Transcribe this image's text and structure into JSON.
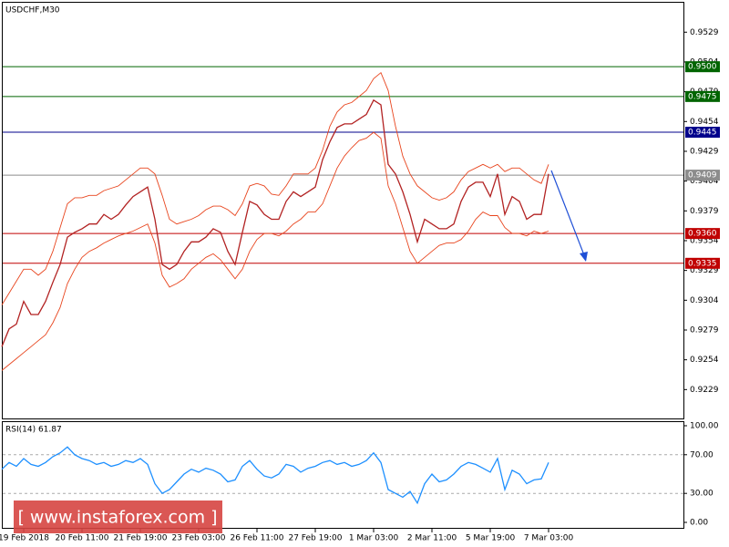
{
  "chart_data": [
    {
      "type": "line",
      "title": "USDCHF,M30",
      "categories": [
        null,
        null,
        null,
        "19 Feb 2018",
        null,
        null,
        null,
        null,
        null,
        null,
        null,
        "20 Feb 11:00",
        null,
        null,
        null,
        null,
        null,
        null,
        null,
        "21 Feb 19:00",
        null,
        null,
        null,
        null,
        null,
        null,
        null,
        "23 Feb 03:00",
        null,
        null,
        null,
        null,
        null,
        null,
        null,
        "26 Feb 11:00",
        null,
        null,
        null,
        null,
        null,
        null,
        null,
        "27 Feb 19:00",
        null,
        null,
        null,
        null,
        null,
        null,
        null,
        "1 Mar 03:00",
        null,
        null,
        null,
        null,
        null,
        null,
        null,
        "2 Mar 11:00",
        null,
        null,
        null,
        null,
        null,
        null,
        null,
        "5 Mar 19:00",
        null,
        null,
        null,
        null,
        null,
        null,
        null,
        "7 Mar 03:00"
      ],
      "series": [
        {
          "name": "Close",
          "color": "#b22222",
          "values": [
            0.9265,
            0.928,
            0.9284,
            0.9303,
            0.9292,
            0.9292,
            0.9303,
            0.9319,
            0.9334,
            0.9357,
            0.9361,
            0.9364,
            0.9368,
            0.9368,
            0.9376,
            0.9372,
            0.9376,
            0.9384,
            0.9391,
            0.9395,
            0.9399,
            0.9372,
            0.9334,
            0.933,
            0.9334,
            0.9345,
            0.9353,
            0.9353,
            0.9357,
            0.9364,
            0.9361,
            0.9345,
            0.9334,
            0.9361,
            0.9387,
            0.9384,
            0.9376,
            0.9372,
            0.9372,
            0.9387,
            0.9395,
            0.9391,
            0.9395,
            0.9399,
            0.9422,
            0.9437,
            0.9449,
            0.9452,
            0.9452,
            0.9456,
            0.946,
            0.9472,
            0.9468,
            0.9418,
            0.941,
            0.9395,
            0.9376,
            0.9353,
            0.9372,
            0.9368,
            0.9364,
            0.9364,
            0.9368,
            0.9387,
            0.9399,
            0.9403,
            0.9403,
            0.9391,
            0.941,
            0.9376,
            0.9391,
            0.9387,
            0.9372,
            0.9376,
            0.9376,
            0.941
          ]
        },
        {
          "name": "Upper",
          "color": "#e8451e",
          "values": [
            0.93,
            0.931,
            0.932,
            0.933,
            0.933,
            0.9325,
            0.933,
            0.9345,
            0.9365,
            0.9385,
            0.939,
            0.939,
            0.9392,
            0.9392,
            0.9396,
            0.9398,
            0.94,
            0.9405,
            0.941,
            0.9415,
            0.9415,
            0.941,
            0.9392,
            0.9372,
            0.9368,
            0.937,
            0.9372,
            0.9375,
            0.938,
            0.9383,
            0.9383,
            0.938,
            0.9375,
            0.9385,
            0.94,
            0.9402,
            0.94,
            0.9393,
            0.9392,
            0.94,
            0.941,
            0.941,
            0.941,
            0.9415,
            0.943,
            0.945,
            0.9462,
            0.9468,
            0.947,
            0.9475,
            0.948,
            0.949,
            0.9495,
            0.948,
            0.945,
            0.9425,
            0.941,
            0.94,
            0.9395,
            0.939,
            0.9388,
            0.939,
            0.9395,
            0.9405,
            0.9412,
            0.9415,
            0.9418,
            0.9415,
            0.9418,
            0.9412,
            0.9415,
            0.9415,
            0.941,
            0.9405,
            0.9402,
            0.9418
          ]
        },
        {
          "name": "Lower",
          "color": "#e8451e",
          "values": [
            0.9245,
            0.925,
            0.9255,
            0.926,
            0.9265,
            0.927,
            0.9275,
            0.9285,
            0.9298,
            0.9318,
            0.933,
            0.934,
            0.9345,
            0.9348,
            0.9352,
            0.9355,
            0.9358,
            0.936,
            0.9362,
            0.9365,
            0.9368,
            0.9352,
            0.9325,
            0.9315,
            0.9318,
            0.9322,
            0.933,
            0.9335,
            0.934,
            0.9343,
            0.9338,
            0.933,
            0.9322,
            0.933,
            0.9345,
            0.9355,
            0.936,
            0.936,
            0.9358,
            0.9362,
            0.9368,
            0.9372,
            0.9378,
            0.9378,
            0.9385,
            0.94,
            0.9415,
            0.9425,
            0.9432,
            0.9438,
            0.944,
            0.9445,
            0.944,
            0.94,
            0.9385,
            0.9365,
            0.9345,
            0.9335,
            0.934,
            0.9345,
            0.935,
            0.9352,
            0.9352,
            0.9355,
            0.9362,
            0.9372,
            0.9378,
            0.9375,
            0.9375,
            0.9365,
            0.936,
            0.936,
            0.9358,
            0.9362,
            0.936,
            0.9362
          ]
        }
      ],
      "ylim": [
        0.9204,
        0.9556
      ],
      "yticks": [
        0.9529,
        0.9504,
        0.9479,
        0.9454,
        0.9429,
        0.9404,
        0.9379,
        0.9354,
        0.9329,
        0.9304,
        0.9279,
        0.9254,
        0.9229
      ],
      "levels": [
        {
          "value": 0.95,
          "label": "0.9500",
          "color": "#006400"
        },
        {
          "value": 0.9475,
          "label": "0.9475",
          "color": "#006400"
        },
        {
          "value": 0.9445,
          "label": "0.9445",
          "color": "#00008b"
        },
        {
          "value": 0.9409,
          "label": "0.9409",
          "color": "#8c8c8c"
        },
        {
          "value": 0.936,
          "label": "0.9360",
          "color": "#c00000"
        },
        {
          "value": 0.9335,
          "label": "0.9335",
          "color": "#c00000"
        }
      ]
    },
    {
      "type": "line",
      "title": "RSI(14) 61.87",
      "series": [
        {
          "name": "RSI(14)",
          "color": "#1e90ff",
          "values": [
            55,
            62,
            58,
            66,
            60,
            58,
            62,
            68,
            72,
            78,
            70,
            66,
            64,
            60,
            62,
            58,
            60,
            64,
            62,
            66,
            60,
            40,
            30,
            34,
            42,
            50,
            55,
            52,
            56,
            54,
            50,
            42,
            44,
            58,
            64,
            55,
            48,
            46,
            50,
            60,
            58,
            52,
            56,
            58,
            62,
            64,
            60,
            62,
            58,
            60,
            64,
            72,
            62,
            34,
            30,
            26,
            32,
            20,
            40,
            50,
            42,
            44,
            50,
            58,
            62,
            60,
            56,
            52,
            66,
            34,
            54,
            50,
            40,
            44,
            45,
            62
          ]
        }
      ],
      "ylim": [
        -6.6,
        104.7
      ],
      "yticks": [
        {
          "value": 100,
          "label": "100.00"
        },
        {
          "value": 70,
          "label": "70.00"
        },
        {
          "value": 30,
          "label": "30.00"
        },
        {
          "value": 0,
          "label": "0.00"
        }
      ],
      "dashed_levels": [
        70,
        30
      ]
    }
  ],
  "watermark": "[ www.instaforex.com ]"
}
